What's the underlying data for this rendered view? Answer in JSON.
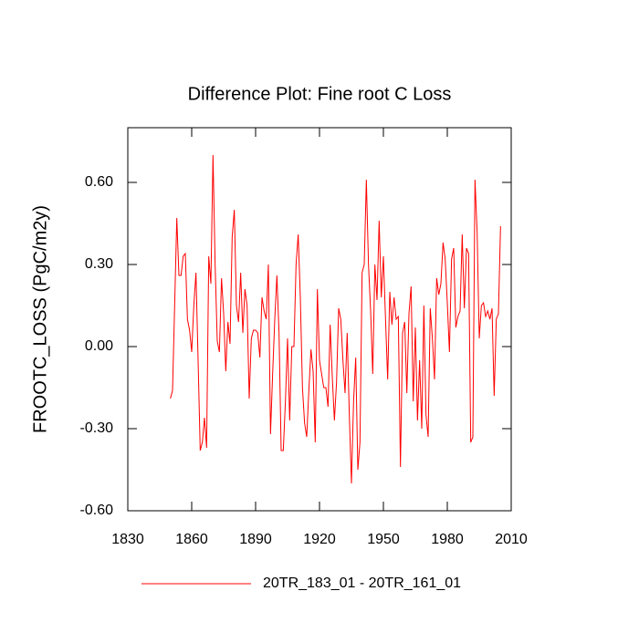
{
  "chart_data": {
    "type": "line",
    "title": "Difference Plot: Fine root C Loss",
    "y_label": "FROOTC_LOSS  (PgC/m2y)",
    "x": [
      1850,
      1851,
      1852,
      1853,
      1854,
      1855,
      1856,
      1857,
      1858,
      1859,
      1860,
      1861,
      1862,
      1863,
      1864,
      1865,
      1866,
      1867,
      1868,
      1869,
      1870,
      1871,
      1872,
      1873,
      1874,
      1875,
      1876,
      1877,
      1878,
      1879,
      1880,
      1881,
      1882,
      1883,
      1884,
      1885,
      1886,
      1887,
      1888,
      1889,
      1890,
      1891,
      1892,
      1893,
      1894,
      1895,
      1896,
      1897,
      1898,
      1899,
      1900,
      1901,
      1902,
      1903,
      1904,
      1905,
      1906,
      1907,
      1908,
      1909,
      1910,
      1911,
      1912,
      1913,
      1914,
      1915,
      1916,
      1917,
      1918,
      1919,
      1920,
      1921,
      1922,
      1923,
      1924,
      1925,
      1926,
      1927,
      1928,
      1929,
      1930,
      1931,
      1932,
      1933,
      1934,
      1935,
      1936,
      1937,
      1938,
      1939,
      1940,
      1941,
      1942,
      1943,
      1944,
      1945,
      1946,
      1947,
      1948,
      1949,
      1950,
      1951,
      1952,
      1953,
      1954,
      1955,
      1956,
      1957,
      1958,
      1959,
      1960,
      1961,
      1962,
      1963,
      1964,
      1965,
      1966,
      1967,
      1968,
      1969,
      1970,
      1971,
      1972,
      1973,
      1974,
      1975,
      1976,
      1977,
      1978,
      1979,
      1980,
      1981,
      1982,
      1983,
      1984,
      1985,
      1986,
      1987,
      1988,
      1989,
      1990,
      1991,
      1992,
      1993,
      1994,
      1995,
      1996,
      1997,
      1998,
      1999,
      2000,
      2001,
      2002,
      2003,
      2004,
      2005
    ],
    "series": [
      {
        "name": "20TR_183_01 - 20TR_161_01",
        "color": "#ff0000",
        "values": [
          -0.19,
          -0.16,
          0.15,
          0.47,
          0.26,
          0.26,
          0.33,
          0.34,
          0.1,
          0.06,
          -0.02,
          0.15,
          0.27,
          -0.05,
          -0.38,
          -0.35,
          -0.26,
          -0.37,
          0.33,
          0.23,
          0.7,
          0.3,
          0.02,
          -0.02,
          0.25,
          0.12,
          -0.09,
          0.09,
          0.01,
          0.4,
          0.5,
          0.15,
          0.09,
          0.27,
          0.05,
          0.21,
          0.15,
          -0.19,
          0.03,
          0.06,
          0.06,
          0.05,
          -0.04,
          0.18,
          0.13,
          0.1,
          0.3,
          -0.32,
          -0.1,
          0.1,
          0.26,
          0.05,
          -0.38,
          -0.38,
          -0.2,
          0.03,
          -0.27,
          0.0,
          0.0,
          0.3,
          0.41,
          0.18,
          -0.15,
          -0.28,
          -0.33,
          -0.16,
          -0.01,
          -0.09,
          -0.35,
          0.21,
          -0.05,
          -0.1,
          -0.15,
          -0.15,
          -0.22,
          0.08,
          -0.11,
          -0.27,
          -0.13,
          0.14,
          0.1,
          -0.05,
          -0.17,
          0.05,
          -0.25,
          -0.5,
          -0.2,
          -0.04,
          -0.45,
          -0.35,
          0.27,
          0.3,
          0.61,
          0.3,
          0.13,
          -0.1,
          0.3,
          0.17,
          0.46,
          0.18,
          0.33,
          0.1,
          -0.12,
          0.2,
          0.08,
          0.18,
          0.1,
          0.11,
          -0.44,
          0.05,
          0.09,
          -0.17,
          0.12,
          0.22,
          -0.2,
          0.07,
          -0.27,
          -0.05,
          -0.3,
          0.15,
          -0.25,
          -0.33,
          0.14,
          0.03,
          -0.12,
          0.25,
          0.19,
          0.23,
          0.38,
          0.32,
          0.16,
          -0.02,
          0.32,
          0.36,
          0.07,
          0.11,
          0.13,
          0.41,
          0.14,
          0.36,
          0.34,
          -0.35,
          -0.33,
          0.61,
          0.42,
          0.03,
          0.15,
          0.16,
          0.11,
          0.13,
          0.1,
          0.14,
          -0.18,
          0.1,
          0.12,
          0.44
        ]
      }
    ],
    "xlim": [
      1830,
      2010
    ],
    "xticks": [
      1830,
      1860,
      1890,
      1920,
      1950,
      1980,
      2010
    ],
    "ylim": [
      -0.6,
      0.8
    ],
    "yticks": [
      {
        "value": -0.6,
        "label": "-0.60"
      },
      {
        "value": -0.3,
        "label": "-0.30"
      },
      {
        "value": 0,
        "label": "0.00"
      },
      {
        "value": 0.3,
        "label": "0.30"
      },
      {
        "value": 0.6,
        "label": "0.60"
      }
    ]
  }
}
